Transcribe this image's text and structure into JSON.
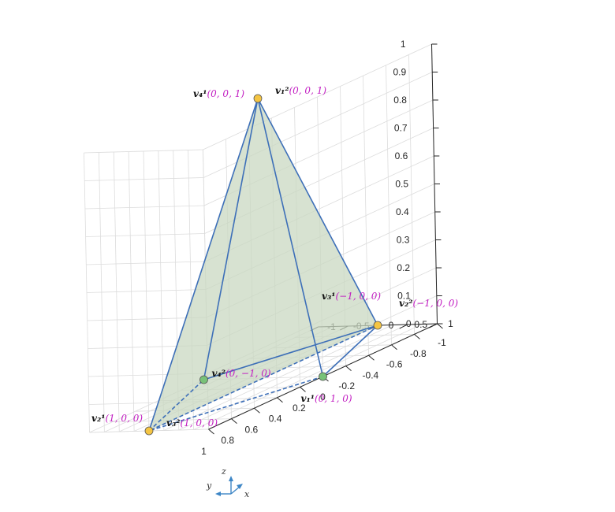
{
  "chart_data": {
    "type": "3d-line",
    "title": "",
    "xlim": [
      -1,
      1
    ],
    "ylim": [
      -1,
      1
    ],
    "zlim": [
      0,
      1
    ],
    "grid": true,
    "colors": {
      "edge": "#3d6fb8",
      "fill": "#c9d8c1",
      "apex": "#f5c542",
      "base": "#78c278",
      "label": "#c21ec2"
    },
    "vertices": [
      {
        "id": "apex",
        "x": 0,
        "y": 0,
        "z": 1,
        "marker": "yellow",
        "labels": [
          {
            "name": "v₄¹",
            "coord": "(0, 0, 1)"
          },
          {
            "name": "v₁²",
            "coord": "(0, 0, 1)"
          }
        ]
      },
      {
        "id": "left",
        "x": 0,
        "y": 1,
        "z": 0,
        "marker": "green",
        "labels": [
          {
            "name": "v₁¹",
            "coord": "(0, 1, 0)"
          }
        ]
      },
      {
        "id": "front",
        "x": -1,
        "y": 0,
        "z": 0,
        "marker": "yellow",
        "labels": [
          {
            "name": "v₃¹",
            "coord": "(−1, 0, 0)"
          },
          {
            "name": "v₂²",
            "coord": "(−1, 0, 0)"
          }
        ]
      },
      {
        "id": "back",
        "x": 1,
        "y": 0,
        "z": 0,
        "marker": "yellow",
        "labels": [
          {
            "name": "v₂¹",
            "coord": "(1, 0, 0)"
          },
          {
            "name": "v₃²",
            "coord": "(1, 0, 0)"
          }
        ]
      },
      {
        "id": "right",
        "x": 0,
        "y": -1,
        "z": 0,
        "marker": "green",
        "labels": [
          {
            "name": "v₄²",
            "coord": "(0, −1, 0)"
          }
        ]
      }
    ],
    "edges": [
      {
        "from": "apex",
        "to": "left",
        "style": "solid"
      },
      {
        "from": "apex",
        "to": "right",
        "style": "solid"
      },
      {
        "from": "apex",
        "to": "front",
        "style": "solid"
      },
      {
        "from": "apex",
        "to": "back",
        "style": "solid"
      },
      {
        "from": "left",
        "to": "front",
        "style": "solid"
      },
      {
        "from": "front",
        "to": "right",
        "style": "solid"
      },
      {
        "from": "left",
        "to": "back",
        "style": "dashed"
      },
      {
        "from": "back",
        "to": "right",
        "style": "dashed"
      },
      {
        "from": "front",
        "to": "back",
        "style": "dashed"
      }
    ],
    "shaded_face": [
      "apex",
      "front",
      "back"
    ],
    "x_ticks": [
      "1",
      "0.8",
      "0.6",
      "0.4",
      "0.2",
      "0",
      "-0.2",
      "-0.4",
      "-0.6",
      "-0.8",
      "-1"
    ],
    "y_ticks": [
      "1",
      "0.5",
      "0",
      "-0.5",
      "-1"
    ],
    "z_ticks": [
      "0",
      "0.1",
      "0.2",
      "0.3",
      "0.4",
      "0.5",
      "0.6",
      "0.7",
      "0.8",
      "0.9",
      "1"
    ],
    "axes_triad": {
      "x": "x",
      "y": "y",
      "z": "z"
    }
  }
}
